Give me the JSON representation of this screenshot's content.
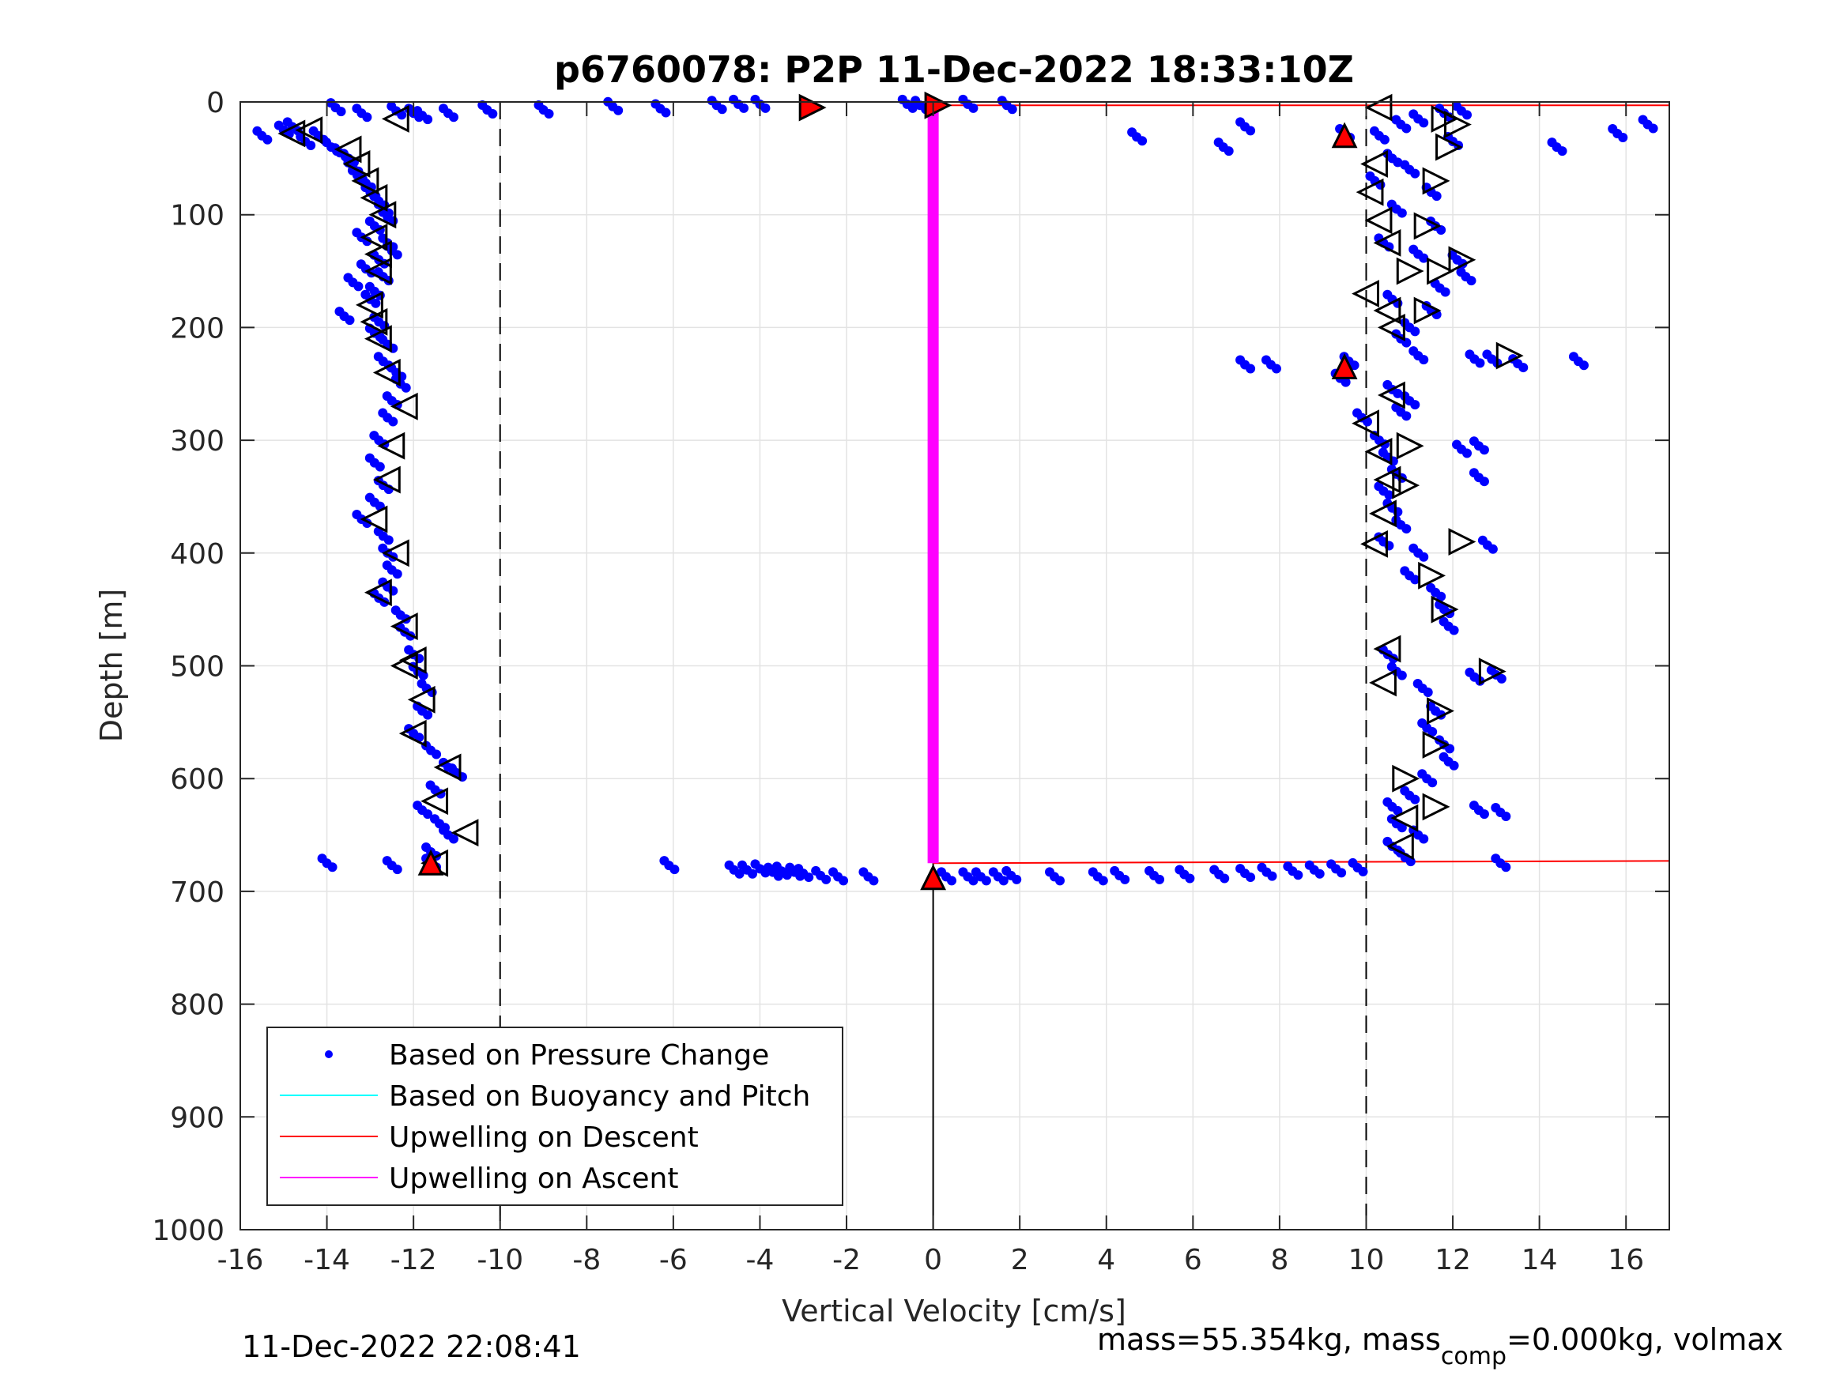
{
  "chart_data": {
    "type": "scatter",
    "title": "p6760078: P2P 11-Dec-2022 18:33:10Z",
    "xlabel": "Vertical Velocity [cm/s]",
    "ylabel": "Depth [m]",
    "xlim": [
      -16,
      17
    ],
    "ylim": [
      0,
      1000
    ],
    "y_reversed": true,
    "grid": true,
    "x_ticks": [
      "-16",
      "-14",
      "-12",
      "-10",
      "-8",
      "-6",
      "-4",
      "-2",
      "0",
      "2",
      "4",
      "6",
      "8",
      "10",
      "12",
      "14",
      "16"
    ],
    "y_ticks": [
      "0",
      "100",
      "200",
      "300",
      "400",
      "500",
      "600",
      "700",
      "800",
      "900",
      "1000"
    ],
    "legend_position": "bottom-left",
    "legend": [
      "Based on Pressure Change",
      "Based on Buoyancy and Pitch",
      "Upwelling on Descent",
      "Upwelling on Ascent"
    ],
    "colors": {
      "pressure": "#0000ff",
      "buoyancy": "#00ffff",
      "descent": "#ff0000",
      "ascent": "#ff00ff"
    },
    "reference_lines_x": [
      -10,
      10
    ],
    "series": [
      {
        "name": "Based on Pressure Change",
        "descent_profile": [
          [
            -13.8,
            5
          ],
          [
            -13.2,
            10
          ],
          [
            -12.4,
            8
          ],
          [
            -12.0,
            10
          ],
          [
            -11.8,
            12
          ],
          [
            -15.5,
            30
          ],
          [
            -15.0,
            25
          ],
          [
            -14.8,
            22
          ],
          [
            -14.5,
            35
          ],
          [
            -14.2,
            30
          ],
          [
            -13.9,
            40
          ],
          [
            -13.7,
            45
          ],
          [
            -13.5,
            50
          ],
          [
            -13.4,
            58
          ],
          [
            -13.3,
            65
          ],
          [
            -13.1,
            72
          ],
          [
            -13.0,
            80
          ],
          [
            -12.8,
            88
          ],
          [
            -12.7,
            95
          ],
          [
            -12.6,
            102
          ],
          [
            -12.9,
            110
          ],
          [
            -13.2,
            120
          ],
          [
            -12.6,
            125
          ],
          [
            -12.5,
            132
          ],
          [
            -12.8,
            140
          ],
          [
            -13.1,
            148
          ],
          [
            -12.7,
            155
          ],
          [
            -13.4,
            160
          ],
          [
            -12.9,
            168
          ],
          [
            -13.0,
            175
          ],
          [
            -13.6,
            190
          ],
          [
            -12.8,
            195
          ],
          [
            -12.9,
            205
          ],
          [
            -12.6,
            215
          ],
          [
            -12.7,
            230
          ],
          [
            -12.4,
            240
          ],
          [
            -12.3,
            250
          ],
          [
            -12.5,
            265
          ],
          [
            -12.6,
            280
          ],
          [
            -12.8,
            300
          ],
          [
            -12.9,
            320
          ],
          [
            -12.7,
            340
          ],
          [
            -12.9,
            355
          ],
          [
            -13.2,
            370
          ],
          [
            -12.7,
            385
          ],
          [
            -12.6,
            400
          ],
          [
            -12.5,
            415
          ],
          [
            -12.6,
            430
          ],
          [
            -12.8,
            440
          ],
          [
            -12.3,
            455
          ],
          [
            -12.2,
            470
          ],
          [
            -12.0,
            490
          ],
          [
            -11.9,
            505
          ],
          [
            -11.7,
            520
          ],
          [
            -11.8,
            540
          ],
          [
            -12.0,
            560
          ],
          [
            -11.6,
            575
          ],
          [
            -11.2,
            590
          ],
          [
            -11.0,
            595
          ],
          [
            -11.5,
            610
          ],
          [
            -11.8,
            628
          ],
          [
            -11.4,
            640
          ],
          [
            -11.2,
            650
          ],
          [
            -11.6,
            665
          ],
          [
            -11.6,
            675
          ],
          [
            -14.0,
            675
          ],
          [
            -12.5,
            677
          ]
        ],
        "surface_transition": [
          [
            -11.2,
            10
          ],
          [
            -10.3,
            7
          ],
          [
            -9.0,
            7
          ],
          [
            -7.4,
            4
          ],
          [
            -6.3,
            6
          ],
          [
            -5.0,
            3
          ],
          [
            -4.5,
            2
          ],
          [
            -4.0,
            2
          ],
          [
            -0.6,
            2
          ],
          [
            -0.3,
            3
          ],
          [
            0.8,
            2
          ],
          [
            1.7,
            3
          ]
        ],
        "bottom_transition": [
          [
            -6.1,
            677
          ],
          [
            -4.6,
            681
          ],
          [
            -4.3,
            681
          ],
          [
            -4.0,
            680
          ],
          [
            -3.7,
            683
          ],
          [
            -3.5,
            682
          ],
          [
            -3.2,
            683
          ],
          [
            -3.0,
            684
          ],
          [
            -2.6,
            686
          ],
          [
            -2.2,
            687
          ],
          [
            -1.5,
            687
          ],
          [
            0.3,
            687
          ],
          [
            0.8,
            687
          ],
          [
            1.1,
            687
          ],
          [
            1.5,
            687
          ],
          [
            1.8,
            686
          ],
          [
            2.8,
            687
          ],
          [
            3.8,
            687
          ],
          [
            4.3,
            686
          ],
          [
            5.1,
            686
          ],
          [
            5.8,
            685
          ],
          [
            6.6,
            685
          ],
          [
            7.2,
            684
          ],
          [
            7.7,
            683
          ],
          [
            8.3,
            682
          ],
          [
            8.8,
            681
          ],
          [
            9.3,
            680
          ],
          [
            9.8,
            679
          ]
        ],
        "ascent_profile": [
          [
            9.5,
            28
          ],
          [
            10.3,
            30
          ],
          [
            10.8,
            20
          ],
          [
            11.2,
            15
          ],
          [
            11.8,
            10
          ],
          [
            12.2,
            8
          ],
          [
            12.0,
            35
          ],
          [
            10.6,
            50
          ],
          [
            11.0,
            60
          ],
          [
            10.2,
            70
          ],
          [
            11.5,
            80
          ],
          [
            10.7,
            95
          ],
          [
            11.6,
            110
          ],
          [
            10.4,
            125
          ],
          [
            11.2,
            135
          ],
          [
            12.1,
            140
          ],
          [
            12.3,
            155
          ],
          [
            11.7,
            165
          ],
          [
            10.6,
            175
          ],
          [
            11.5,
            185
          ],
          [
            11.0,
            200
          ],
          [
            10.8,
            210
          ],
          [
            11.2,
            225
          ],
          [
            9.6,
            230
          ],
          [
            9.4,
            245
          ],
          [
            10.6,
            255
          ],
          [
            11.0,
            265
          ],
          [
            10.8,
            275
          ],
          [
            9.9,
            280
          ],
          [
            10.3,
            300
          ],
          [
            10.5,
            315
          ],
          [
            10.7,
            330
          ],
          [
            10.4,
            345
          ],
          [
            10.6,
            360
          ],
          [
            10.8,
            375
          ],
          [
            10.4,
            390
          ],
          [
            11.2,
            400
          ],
          [
            11.0,
            420
          ],
          [
            11.6,
            435
          ],
          [
            11.8,
            450
          ],
          [
            11.9,
            465
          ],
          [
            10.5,
            490
          ],
          [
            10.7,
            505
          ],
          [
            11.3,
            520
          ],
          [
            11.6,
            540
          ],
          [
            11.4,
            555
          ],
          [
            11.8,
            570
          ],
          [
            11.9,
            585
          ],
          [
            11.4,
            600
          ],
          [
            11.0,
            615
          ],
          [
            10.6,
            625
          ],
          [
            10.7,
            640
          ],
          [
            11.2,
            650
          ],
          [
            10.6,
            660
          ],
          [
            10.9,
            670
          ],
          [
            13.1,
            675
          ]
        ],
        "outliers": [
          [
            16.5,
            20
          ],
          [
            15.8,
            28
          ],
          [
            14.4,
            40
          ],
          [
            7.2,
            22
          ],
          [
            6.7,
            40
          ],
          [
            4.7,
            31
          ],
          [
            12.5,
            228
          ],
          [
            12.9,
            228
          ],
          [
            13.5,
            232
          ],
          [
            14.9,
            230
          ],
          [
            7.2,
            233
          ],
          [
            7.8,
            233
          ],
          [
            12.6,
            305
          ],
          [
            12.2,
            308
          ],
          [
            12.6,
            333
          ],
          [
            12.8,
            393
          ],
          [
            12.5,
            510
          ],
          [
            13.0,
            508
          ],
          [
            12.6,
            628
          ],
          [
            13.1,
            630
          ]
        ]
      },
      {
        "name": "Upwelling on Descent",
        "lines": [
          {
            "x": [
              0,
              17
            ],
            "y": [
              3,
              3
            ]
          },
          {
            "x": [
              0,
              17
            ],
            "y": [
              675,
              673
            ]
          }
        ]
      },
      {
        "name": "Upwelling on Ascent",
        "lines": [
          {
            "x": [
              0,
              0
            ],
            "y": [
              5,
              675
            ]
          }
        ]
      }
    ],
    "markers": {
      "descent_triangles_left": [
        [
          -14.8,
          28
        ],
        [
          -14.4,
          25
        ],
        [
          -12.4,
          15
        ],
        [
          -13.5,
          42
        ],
        [
          -13.3,
          55
        ],
        [
          -13.1,
          70
        ],
        [
          -12.9,
          85
        ],
        [
          -12.7,
          100
        ],
        [
          -12.9,
          120
        ],
        [
          -12.8,
          135
        ],
        [
          -12.8,
          150
        ],
        [
          -13.0,
          180
        ],
        [
          -12.9,
          195
        ],
        [
          -12.8,
          210
        ],
        [
          -12.6,
          240
        ],
        [
          -12.2,
          270
        ],
        [
          -12.5,
          305
        ],
        [
          -12.6,
          335
        ],
        [
          -12.9,
          370
        ],
        [
          -12.4,
          400
        ],
        [
          -12.8,
          435
        ],
        [
          -12.2,
          465
        ],
        [
          -12.0,
          495
        ],
        [
          -12.2,
          500
        ],
        [
          -11.8,
          530
        ],
        [
          -12.0,
          560
        ],
        [
          -11.2,
          590
        ],
        [
          -11.5,
          620
        ],
        [
          -10.8,
          648
        ],
        [
          -11.5,
          675
        ]
      ],
      "ascent_triangles_left": [
        [
          10.3,
          5
        ],
        [
          10.2,
          55
        ],
        [
          10.1,
          80
        ],
        [
          10.3,
          105
        ],
        [
          10.5,
          125
        ],
        [
          10.0,
          170
        ],
        [
          10.5,
          185
        ],
        [
          10.6,
          200
        ],
        [
          10.6,
          260
        ],
        [
          10.0,
          285
        ],
        [
          10.3,
          310
        ],
        [
          10.5,
          335
        ],
        [
          10.4,
          365
        ],
        [
          10.2,
          392
        ],
        [
          10.5,
          485
        ],
        [
          10.4,
          515
        ],
        [
          10.9,
          635
        ],
        [
          10.8,
          660
        ]
      ],
      "ascent_triangles_right": [
        [
          11.8,
          15
        ],
        [
          12.1,
          20
        ],
        [
          11.9,
          40
        ],
        [
          11.6,
          70
        ],
        [
          11.4,
          110
        ],
        [
          12.2,
          140
        ],
        [
          11.7,
          150
        ],
        [
          11.0,
          150
        ],
        [
          11.4,
          185
        ],
        [
          13.3,
          225
        ],
        [
          11.0,
          305
        ],
        [
          10.9,
          340
        ],
        [
          12.2,
          390
        ],
        [
          11.5,
          420
        ],
        [
          11.8,
          450
        ],
        [
          12.9,
          505
        ],
        [
          11.7,
          540
        ],
        [
          11.6,
          570
        ],
        [
          10.9,
          600
        ],
        [
          11.6,
          625
        ]
      ],
      "red_triangles": [
        [
          -11.6,
          675
        ],
        [
          9.5,
          30
        ],
        [
          9.5,
          235
        ],
        [
          -2.8,
          5
        ],
        [
          0.1,
          3
        ],
        [
          0.0,
          688
        ]
      ]
    }
  },
  "footer": {
    "timestamp": "11-Dec-2022 22:08:41",
    "mass_text": "mass=55.354kg, mass",
    "mass_sub": "comp",
    "mass_rest": "=0.000kg, volmax"
  }
}
